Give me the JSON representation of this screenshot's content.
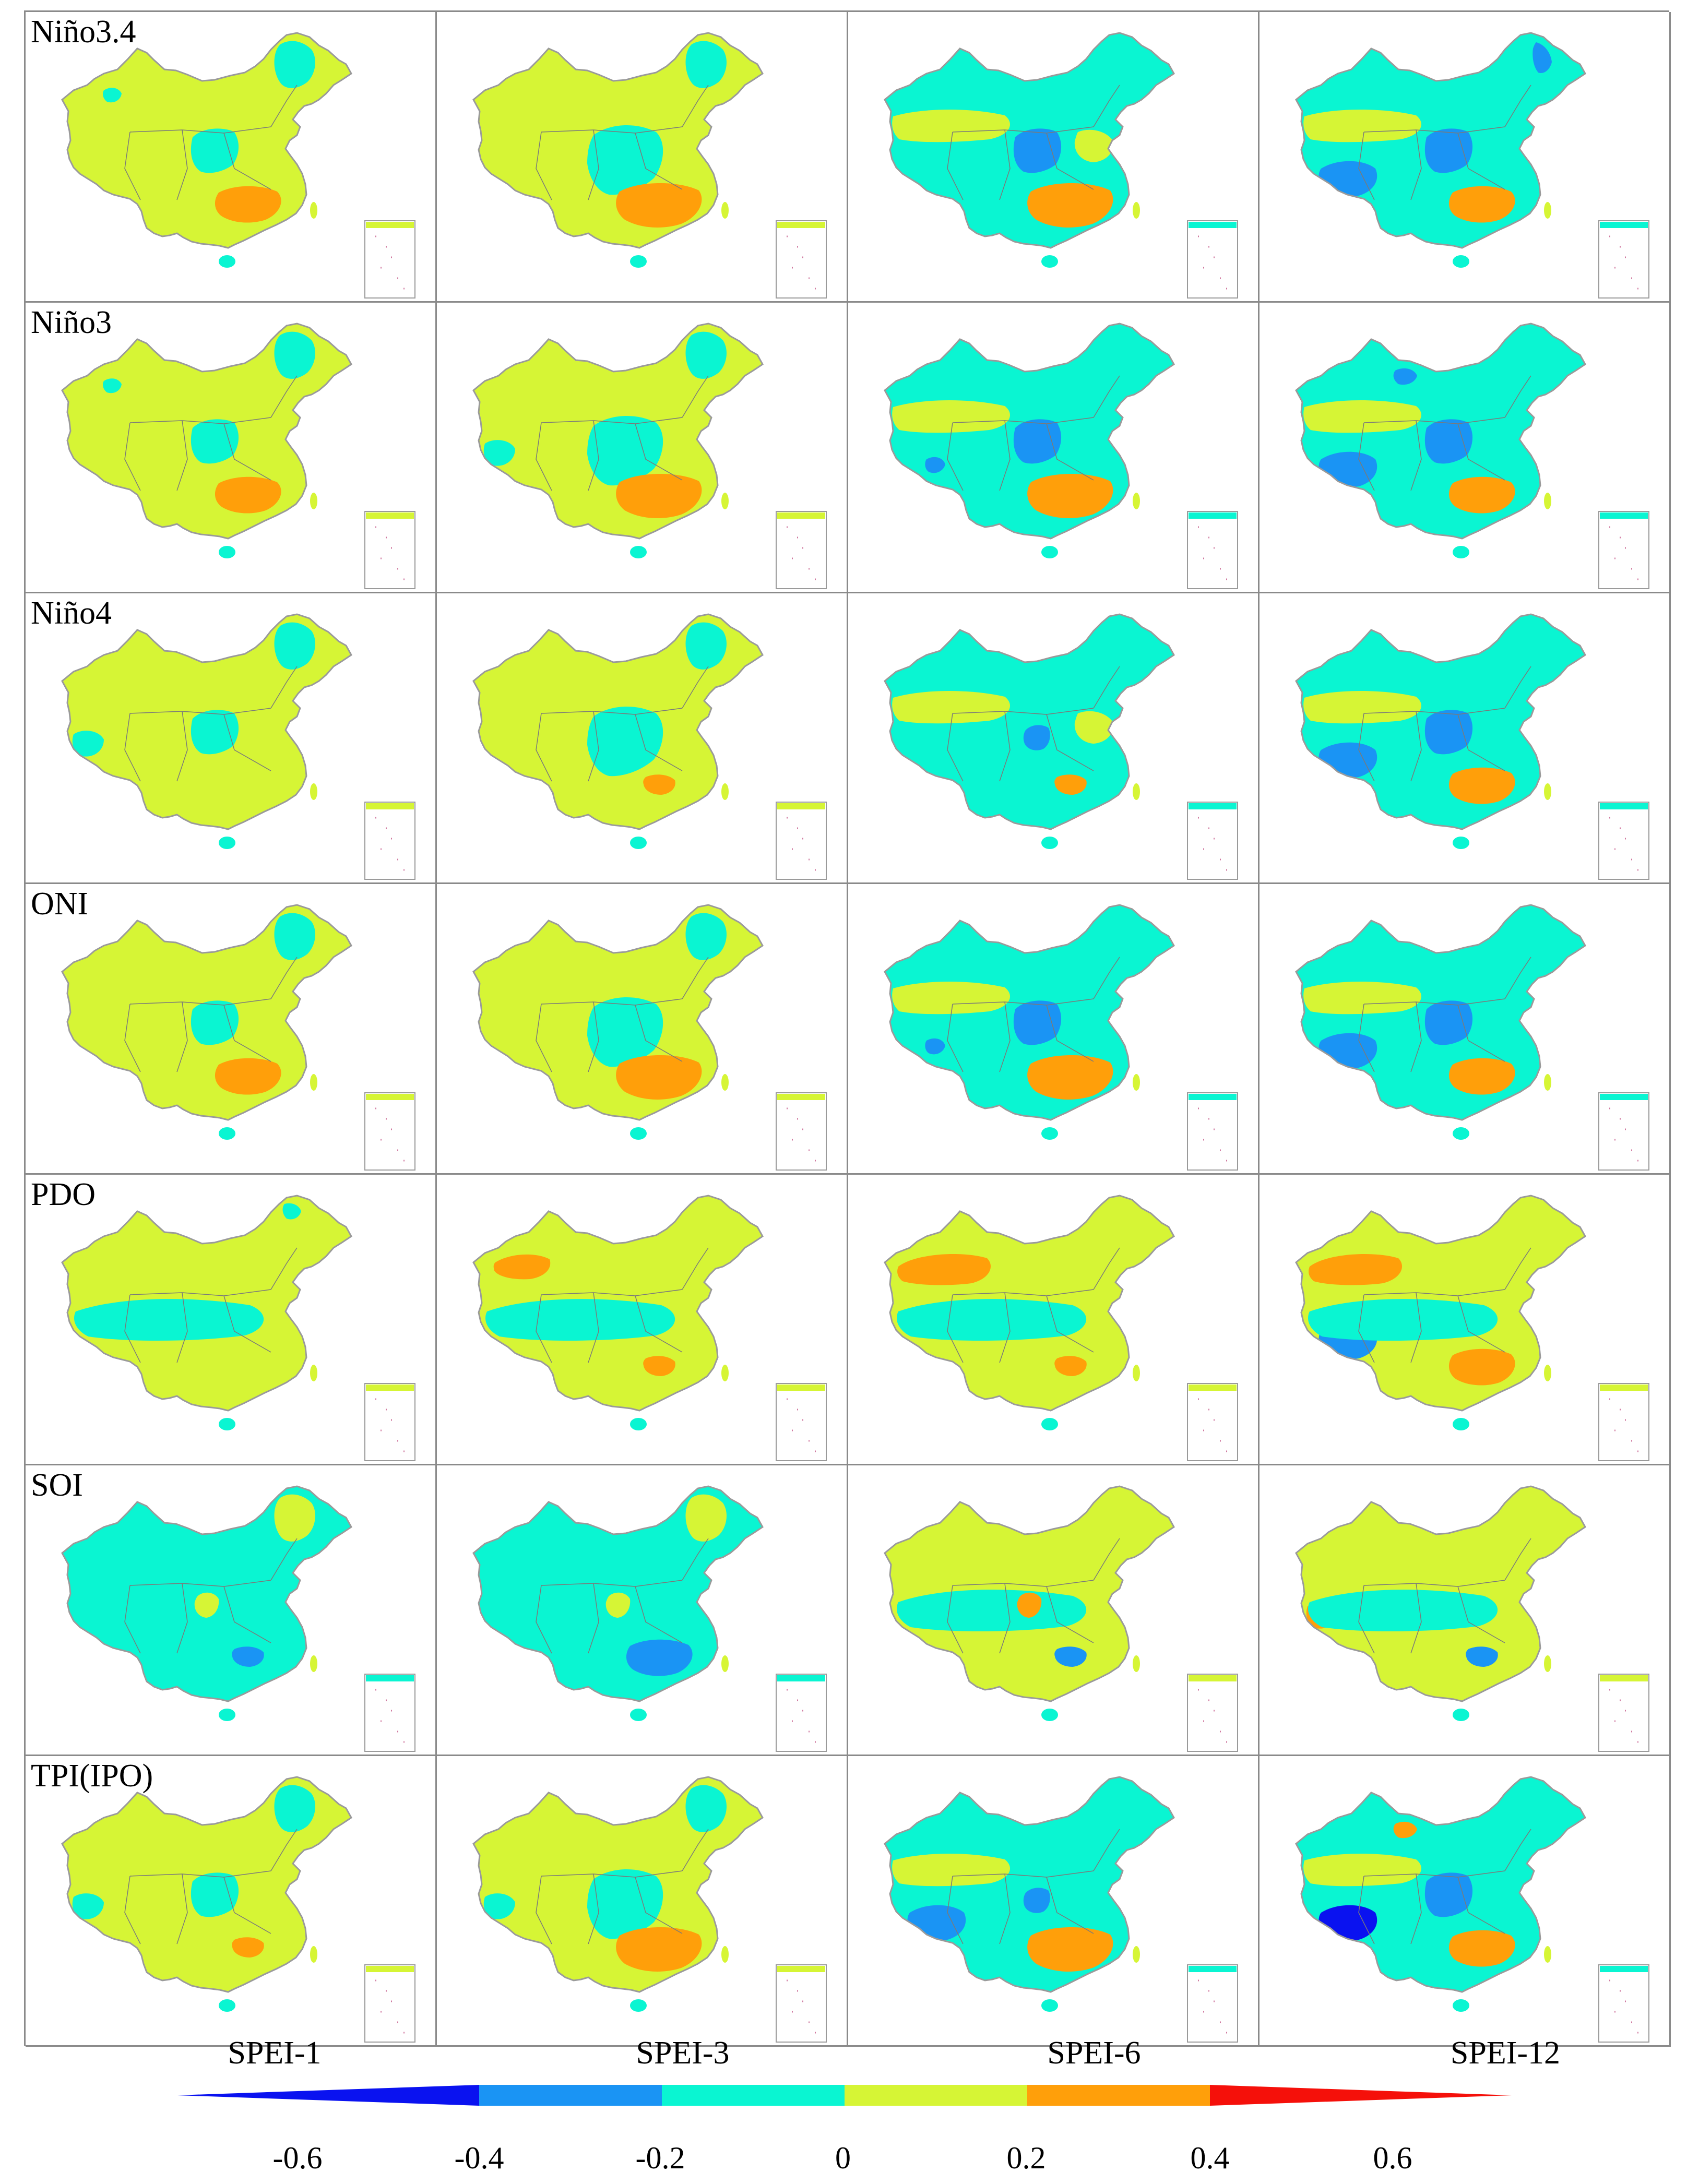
{
  "figure": {
    "rows": [
      "Niño3.4",
      "Niño3",
      "Niño4",
      "ONI",
      "PDO",
      "SOI",
      "TPI(IPO)"
    ],
    "columns": [
      "SPEI-1",
      "SPEI-3",
      "SPEI-6",
      "SPEI-12"
    ]
  },
  "colorbar": {
    "ticks": [
      "-0.6",
      "-0.4",
      "-0.2",
      "0",
      "0.2",
      "0.4",
      "0.6"
    ],
    "bins": [
      {
        "range": "< -0.4",
        "color": "#0a12f0"
      },
      {
        "range": "-0.4 – -0.2",
        "color": "#1a94f4"
      },
      {
        "range": "-0.2 – 0",
        "color": "#0af5d2"
      },
      {
        "range": "0 – 0.2",
        "color": "#d6f535"
      },
      {
        "range": "0.2 – 0.4",
        "color": "#ff9f0a"
      },
      {
        "range": "> 0.4",
        "color": "#f5100a"
      }
    ]
  },
  "maps": [
    [
      {
        "base": "yellow",
        "patches": [
          [
            "cyan",
            "center"
          ],
          [
            "cyan",
            "northeast"
          ],
          [
            "cyan",
            "northwest-spot"
          ],
          [
            "orange",
            "southeast"
          ]
        ]
      },
      {
        "base": "yellow",
        "patches": [
          [
            "cyan",
            "center-wide"
          ],
          [
            "cyan",
            "northeast"
          ],
          [
            "orange",
            "southeast-wide"
          ]
        ]
      },
      {
        "base": "cyan",
        "patches": [
          [
            "yellow",
            "west-band"
          ],
          [
            "blue",
            "center"
          ],
          [
            "orange",
            "southeast-wide"
          ],
          [
            "yellow",
            "east"
          ]
        ]
      },
      {
        "base": "cyan",
        "patches": [
          [
            "blue",
            "center"
          ],
          [
            "blue",
            "tibet"
          ],
          [
            "blue",
            "northeast-edge"
          ],
          [
            "orange",
            "southeast"
          ],
          [
            "yellow",
            "west-band"
          ]
        ]
      }
    ],
    [
      {
        "base": "yellow",
        "patches": [
          [
            "cyan",
            "center"
          ],
          [
            "cyan",
            "northeast"
          ],
          [
            "cyan",
            "northwest-spot"
          ],
          [
            "orange",
            "southeast"
          ]
        ]
      },
      {
        "base": "yellow",
        "patches": [
          [
            "cyan",
            "center-wide"
          ],
          [
            "cyan",
            "northeast"
          ],
          [
            "cyan",
            "tibet-west"
          ],
          [
            "orange",
            "southeast-wide"
          ]
        ]
      },
      {
        "base": "cyan",
        "patches": [
          [
            "yellow",
            "west-band"
          ],
          [
            "blue",
            "center"
          ],
          [
            "orange",
            "southeast-wide"
          ],
          [
            "blue",
            "tibet-spot"
          ]
        ]
      },
      {
        "base": "cyan",
        "patches": [
          [
            "blue",
            "center"
          ],
          [
            "blue",
            "tibet"
          ],
          [
            "blue",
            "north-spot"
          ],
          [
            "orange",
            "southeast"
          ],
          [
            "yellow",
            "west-band"
          ]
        ]
      }
    ],
    [
      {
        "base": "yellow",
        "patches": [
          [
            "cyan",
            "center"
          ],
          [
            "cyan",
            "northeast"
          ],
          [
            "cyan",
            "tibet-west"
          ]
        ]
      },
      {
        "base": "yellow",
        "patches": [
          [
            "cyan",
            "center-wide"
          ],
          [
            "cyan",
            "northeast"
          ],
          [
            "orange",
            "southeast-small"
          ]
        ]
      },
      {
        "base": "cyan",
        "patches": [
          [
            "yellow",
            "west-band"
          ],
          [
            "blue",
            "center-small"
          ],
          [
            "orange",
            "southeast-small"
          ],
          [
            "yellow",
            "east"
          ]
        ]
      },
      {
        "base": "cyan",
        "patches": [
          [
            "blue",
            "center"
          ],
          [
            "blue",
            "tibet"
          ],
          [
            "orange",
            "southeast"
          ],
          [
            "yellow",
            "west-band"
          ]
        ]
      }
    ],
    [
      {
        "base": "yellow",
        "patches": [
          [
            "cyan",
            "center"
          ],
          [
            "cyan",
            "northeast"
          ],
          [
            "orange",
            "southeast"
          ]
        ]
      },
      {
        "base": "yellow",
        "patches": [
          [
            "cyan",
            "center-wide"
          ],
          [
            "cyan",
            "northeast"
          ],
          [
            "orange",
            "southeast-wide"
          ]
        ]
      },
      {
        "base": "cyan",
        "patches": [
          [
            "yellow",
            "west-band"
          ],
          [
            "blue",
            "center"
          ],
          [
            "blue",
            "tibet-spot"
          ],
          [
            "orange",
            "southeast-wide"
          ]
        ]
      },
      {
        "base": "cyan",
        "patches": [
          [
            "blue",
            "center"
          ],
          [
            "blue",
            "tibet"
          ],
          [
            "orange",
            "southeast"
          ],
          [
            "yellow",
            "west-band"
          ]
        ]
      }
    ],
    [
      {
        "base": "yellow",
        "patches": [
          [
            "cyan",
            "south-band"
          ],
          [
            "cyan",
            "northeast-spot"
          ]
        ]
      },
      {
        "base": "yellow",
        "patches": [
          [
            "orange",
            "northwest"
          ],
          [
            "cyan",
            "south-band"
          ],
          [
            "orange",
            "southeast-small"
          ]
        ]
      },
      {
        "base": "yellow",
        "patches": [
          [
            "orange",
            "northwest-wide"
          ],
          [
            "cyan",
            "south-band"
          ],
          [
            "orange",
            "southeast-small"
          ]
        ]
      },
      {
        "base": "yellow",
        "patches": [
          [
            "orange",
            "northwest-wide"
          ],
          [
            "blue",
            "tibet"
          ],
          [
            "cyan",
            "south-band"
          ],
          [
            "orange",
            "southeast"
          ]
        ]
      }
    ],
    [
      {
        "base": "cyan",
        "patches": [
          [
            "yellow",
            "northeast"
          ],
          [
            "yellow",
            "center-spot"
          ],
          [
            "blue",
            "southeast-small"
          ]
        ]
      },
      {
        "base": "cyan",
        "patches": [
          [
            "yellow",
            "northeast"
          ],
          [
            "yellow",
            "center-spot"
          ],
          [
            "blue",
            "southeast"
          ]
        ]
      },
      {
        "base": "yellow",
        "patches": [
          [
            "cyan",
            "south-band"
          ],
          [
            "orange",
            "center-spot"
          ],
          [
            "blue",
            "southeast-small"
          ]
        ]
      },
      {
        "base": "yellow",
        "patches": [
          [
            "orange",
            "tibet-west"
          ],
          [
            "orange",
            "center-spot"
          ],
          [
            "cyan",
            "south-band"
          ],
          [
            "blue",
            "southeast-small"
          ]
        ]
      }
    ],
    [
      {
        "base": "yellow",
        "patches": [
          [
            "cyan",
            "center"
          ],
          [
            "cyan",
            "northeast"
          ],
          [
            "cyan",
            "tibet-west"
          ],
          [
            "orange",
            "southeast-small"
          ]
        ]
      },
      {
        "base": "yellow",
        "patches": [
          [
            "cyan",
            "center-wide"
          ],
          [
            "cyan",
            "northeast"
          ],
          [
            "cyan",
            "tibet-west"
          ],
          [
            "orange",
            "southeast-wide"
          ]
        ]
      },
      {
        "base": "cyan",
        "patches": [
          [
            "yellow",
            "west-band"
          ],
          [
            "blue",
            "tibet"
          ],
          [
            "blue",
            "center-small"
          ],
          [
            "orange",
            "southeast-wide"
          ]
        ]
      },
      {
        "base": "cyan",
        "patches": [
          [
            "deepblue",
            "tibet"
          ],
          [
            "blue",
            "center"
          ],
          [
            "orange",
            "southeast"
          ],
          [
            "orange",
            "north-spot"
          ],
          [
            "yellow",
            "west-band"
          ]
        ]
      }
    ]
  ]
}
